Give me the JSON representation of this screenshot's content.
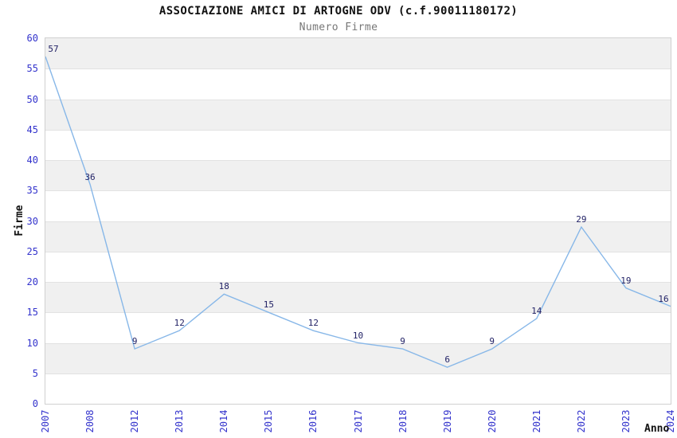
{
  "chart_data": {
    "type": "line",
    "title": "ASSOCIAZIONE AMICI DI ARTOGNE ODV (c.f.90011180172)",
    "subtitle": "Numero Firme",
    "xlabel": "Anno",
    "ylabel": "Firme",
    "categories": [
      "2007",
      "2008",
      "2012",
      "2013",
      "2014",
      "2015",
      "2016",
      "2017",
      "2018",
      "2019",
      "2020",
      "2021",
      "2022",
      "2023",
      "2024"
    ],
    "series": [
      {
        "name": "Numero Firme",
        "values": [
          57,
          36,
          9,
          12,
          18,
          15,
          12,
          10,
          9,
          6,
          9,
          14,
          29,
          19,
          16
        ]
      }
    ],
    "ylim": [
      0,
      60
    ],
    "ytick_step": 5,
    "yticks": [
      0,
      5,
      10,
      15,
      20,
      25,
      30,
      35,
      40,
      45,
      50,
      55,
      60
    ],
    "grid": "alternating-horizontal-bands",
    "legend": "none",
    "data_labels_visible": true,
    "colors": {
      "line": "#87b7e8",
      "tick_label": "#3333cc",
      "data_label": "#222266",
      "band_gray": "#f0f0f0",
      "band_white": "#ffffff",
      "gridline": "#e2e2e2",
      "plot_border": "#d0d0d0",
      "title": "#111111",
      "subtitle": "#777777",
      "axis_title": "#111111"
    }
  }
}
